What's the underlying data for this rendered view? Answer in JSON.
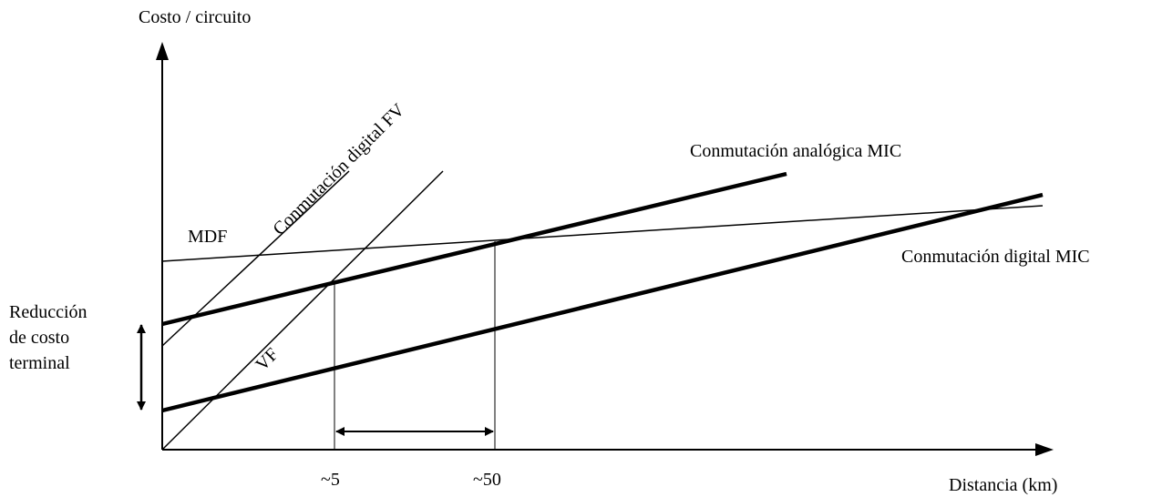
{
  "labels": {
    "y_axis": "Costo / circuito",
    "x_axis": "Distancia (km)",
    "tick_5": "~5",
    "tick_50": "~50",
    "mdf": "MDF",
    "vf": "VF",
    "digital_fv": "Conmutación digital FV",
    "analog_mic": "Conmutación analógica MIC",
    "digital_mic": "Conmutación digital MIC",
    "reduction_1": "Reducción",
    "reduction_2": "de costo",
    "reduction_3": "terminal"
  },
  "colors": {
    "ink": "#000000",
    "background": "#ffffff"
  },
  "line_styles": {
    "thin": "MDF, VF, Conmutación digital FV",
    "thick": "Conmutación analógica MIC, Conmutación digital MIC"
  }
}
